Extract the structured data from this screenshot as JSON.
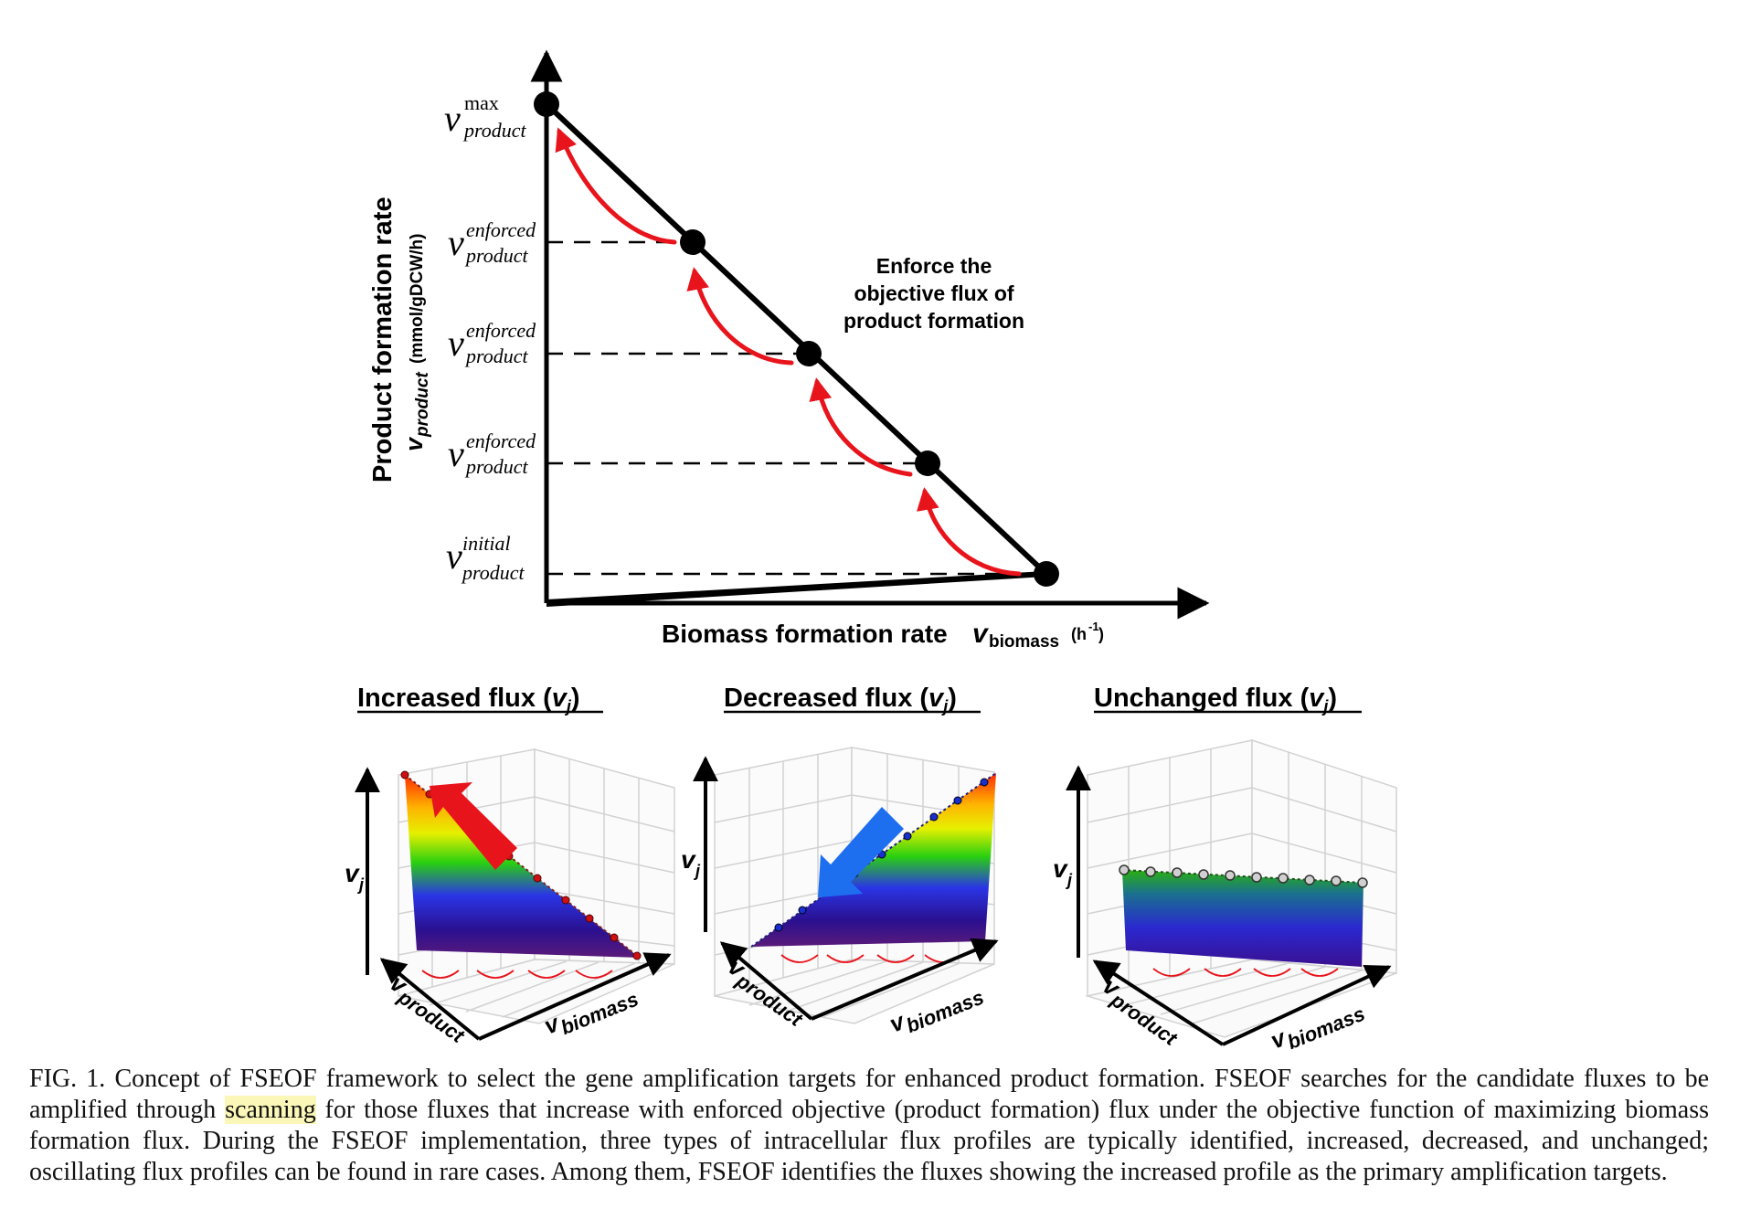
{
  "top_chart": {
    "y_axis_title": "Product formation rate",
    "y_axis_subtitle_v": "v",
    "y_axis_subtitle_sub": "product",
    "y_axis_subtitle_units": "(mmol/gDCW/h)",
    "x_axis_title": "Biomass formation rate",
    "x_axis_v": "v",
    "x_axis_sub": "biomass",
    "x_axis_units": "(h",
    "x_axis_units_sup": "-1",
    "x_axis_units_close": ")",
    "y_ticks": [
      {
        "v": "v",
        "sup": "max",
        "sub": "product"
      },
      {
        "v": "v",
        "sup": "enforced",
        "sub": "product"
      },
      {
        "v": "v",
        "sup": "enforced",
        "sub": "product"
      },
      {
        "v": "v",
        "sup": "enforced",
        "sub": "product"
      },
      {
        "v": "v",
        "sup": "initial",
        "sub": "product"
      }
    ],
    "annotation": [
      "Enforce the",
      "objective flux of",
      "product formation"
    ],
    "line_color": "#000000",
    "arrow_color": "#e8141c"
  },
  "panels": [
    {
      "title": "Increased flux (",
      "title_v": "v",
      "title_sub": "j",
      "title_close": ")",
      "y_label": "v",
      "y_sub": "j",
      "x1_label": "v",
      "x1_sub": "product",
      "x2_label": "v",
      "x2_sub": "biomass",
      "arrow_color": "#e8141c",
      "dot_color": "#cc1111"
    },
    {
      "title": "Decreased flux (",
      "title_v": "v",
      "title_sub": "j",
      "title_close": ")",
      "y_label": "v",
      "y_sub": "j",
      "x1_label": "v",
      "x1_sub": "product",
      "x2_label": "v",
      "x2_sub": "biomass",
      "arrow_color": "#1e6ff0",
      "dot_color": "#1a2fd0"
    },
    {
      "title": "Unchanged flux (",
      "title_v": "v",
      "title_sub": "j",
      "title_close": ")",
      "y_label": "v",
      "y_sub": "j",
      "x1_label": "v",
      "x1_sub": "product",
      "x2_label": "v",
      "x2_sub": "biomass",
      "arrow_color": "#e8141c",
      "dot_color": "#cfcfcf"
    }
  ],
  "caption": {
    "part1": "FIG. 1. Concept of FSEOF framework to select the gene amplification targets for enhanced product formation. FSEOF searches for the candidate fluxes to be amplified through ",
    "highlight": "scanning",
    "part2": " for those fluxes that increase with enforced objective (product formation) flux under the objective function of maximizing biomass formation flux. During the FSEOF implementation, three types of intracellular flux profiles are typically identified, increased, decreased, and unchanged; oscillating flux profiles can be found in rare cases. Among them, FSEOF identifies the fluxes showing the increased profile as the primary amplification targets.",
    "highlight_color": "#fbf7b8"
  }
}
